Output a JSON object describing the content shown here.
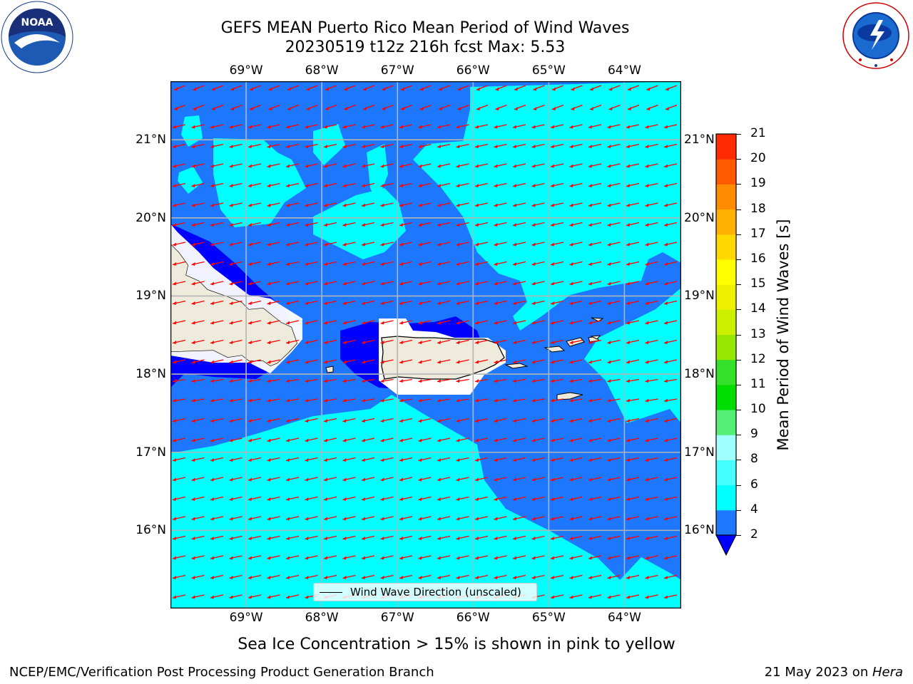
{
  "header": {
    "title_line1": "GEFS MEAN Puerto Rico Mean Period of Wind Waves",
    "title_line2": "20230519 t12z 216h fcst   Max: 5.53"
  },
  "map": {
    "lon_ticks": [
      "69°W",
      "68°W",
      "67°W",
      "66°W",
      "65°W",
      "64°W"
    ],
    "lat_ticks": [
      "21°N",
      "20°N",
      "19°N",
      "18°N",
      "17°N",
      "16°N"
    ],
    "lon_range": [
      -70,
      -63.25
    ],
    "lat_range": [
      15.0,
      21.75
    ],
    "gridlines": true,
    "land_color": "#efebdc",
    "wind_direction": "westward (toward the west)",
    "arrow_color": "#ff0000"
  },
  "colorbar": {
    "title": "Mean Period of Wind Waves [s]",
    "levels": [
      "2",
      "4",
      "6",
      "8",
      "9",
      "10",
      "11",
      "12",
      "13",
      "14",
      "15",
      "16",
      "17",
      "18",
      "19",
      "20",
      "21"
    ],
    "colors": [
      "#1e78ff",
      "#00ffff",
      "#46ffff",
      "#a0ffff",
      "#55ee77",
      "#00dd00",
      "#33e02a",
      "#99e600",
      "#ccf000",
      "#eef000",
      "#ffff00",
      "#ffd800",
      "#ffb000",
      "#ff8c00",
      "#ff5a00",
      "#ff2a00",
      "#ff0000"
    ],
    "under_color": "#0000ff"
  },
  "legend": {
    "label": "Wind Wave Direction (unscaled)"
  },
  "notes": {
    "sea_ice": "Sea Ice Concentration > 15% is shown in pink to yellow"
  },
  "footer": {
    "left": "NCEP/EMC/Verification Post Processing Product Generation Branch",
    "right_prefix": "21 May 2023 on ",
    "right_machine": "Hera"
  },
  "logos": {
    "noaa": "NOAA",
    "noaa_ring": "NATIONAL OCEANIC AND ATMOSPHERIC ADMINISTRATION · U.S. DEPARTMENT OF COMMERCE",
    "nws_ring": "NATIONAL WEATHER SERVICE"
  }
}
